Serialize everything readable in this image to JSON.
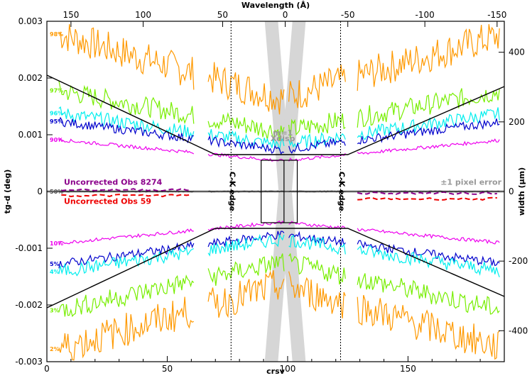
{
  "chart_data": {
    "type": "line",
    "xlabel": "crsv",
    "ylabel": "tg-d (deg)",
    "top_label": "Wavelength (Å)",
    "right_label": "width (µm)",
    "xlim": [
      0,
      190
    ],
    "ylim": [
      -0.003,
      0.003
    ],
    "right_ylim": [
      -489,
      489
    ],
    "x_ticks": [
      "0",
      "50",
      "100",
      "150"
    ],
    "x_tick_values": [
      0,
      50,
      100,
      150
    ],
    "y_ticks": [
      "0.003",
      "0.002",
      "0.001",
      "0",
      "-0.001",
      "-0.002",
      "-0.003"
    ],
    "y_tick_values": [
      0.003,
      0.002,
      0.001,
      0,
      -0.001,
      -0.002,
      -0.003
    ],
    "top_ticks": [
      "150",
      "100",
      "50",
      "0",
      "-50",
      "-100",
      "-150"
    ],
    "top_tick_crsv": [
      10,
      40,
      73,
      99,
      125,
      157,
      187
    ],
    "right_ticks": [
      "400",
      "200",
      "0",
      "-200",
      "-400"
    ],
    "right_tick_values": [
      400,
      200,
      0,
      -200,
      -400
    ],
    "dashed_verticals": [
      76.5,
      122
    ],
    "edge_labels": [
      "C-K edge",
      "C-K edge"
    ],
    "order_label_1": "m=1",
    "order_label_2": "Xdisp",
    "pixel_error_label": "±1 pixel error",
    "percentile_series": [
      {
        "label": "98%",
        "color": "#ff9900",
        "level": 0.00265,
        "noise": 0.0003
      },
      {
        "label": "97%",
        "color": "#77ee00",
        "level": 0.0017,
        "noise": 0.00018
      },
      {
        "label": "96%",
        "color": "#00eeee",
        "level": 0.00132,
        "noise": 0.00012
      },
      {
        "label": "95%",
        "color": "#0000cc",
        "level": 0.00118,
        "noise": 8e-05
      },
      {
        "label": "90%",
        "color": "#ee00ee",
        "level": 0.00087,
        "noise": 3e-05
      },
      {
        "label": "50%",
        "color": "#555555",
        "level": 0.0,
        "noise": 1e-05
      },
      {
        "label": "10%",
        "color": "#ee00ee",
        "level": -0.00087,
        "noise": 3e-05
      },
      {
        "label": "5%",
        "color": "#0000cc",
        "level": -0.00122,
        "noise": 8e-05
      },
      {
        "label": "4%",
        "color": "#00eeee",
        "level": -0.00135,
        "noise": 0.00012
      },
      {
        "label": "3%",
        "color": "#77ee00",
        "level": -0.002,
        "noise": 0.00018
      },
      {
        "label": "2%",
        "color": "#ff9900",
        "level": -0.00265,
        "noise": 0.0003
      }
    ],
    "uncorrected": [
      {
        "name": "Uncorrected Obs 8274",
        "color": "#8b008b",
        "level": 3e-05
      },
      {
        "name": "Uncorrected Obs 59",
        "color": "#ee0000",
        "level": -7e-05
      }
    ],
    "envelope": {
      "upper": [
        [
          0,
          0.00205
        ],
        [
          70,
          0.00065
        ],
        [
          125,
          0.00065
        ],
        [
          190,
          0.00185
        ]
      ],
      "lower": [
        [
          0,
          -0.00205
        ],
        [
          70,
          -0.00065
        ],
        [
          125,
          -0.00065
        ],
        [
          190,
          -0.00185
        ]
      ]
    }
  }
}
